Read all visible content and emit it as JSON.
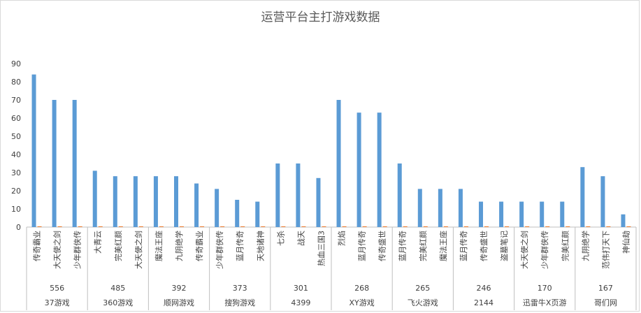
{
  "chart_data": {
    "type": "bar",
    "title": "运营平台主打游戏数据",
    "xlabel": "",
    "ylabel": "",
    "ylim": [
      0,
      90
    ],
    "yticks": [
      0,
      10,
      20,
      30,
      40,
      50,
      60,
      70,
      80,
      90
    ],
    "grid": false,
    "colors": {
      "series1": "#5b9bd5",
      "series2": "#ed7d31"
    },
    "groups": [
      {
        "platform": "37游戏",
        "total": "556",
        "games": [
          {
            "name": "传奇霸业",
            "value": 84,
            "value2": 0.4
          },
          {
            "name": "大天使之剑",
            "value": 70,
            "value2": 0.4
          },
          {
            "name": "少年群侠传",
            "value": 70,
            "value2": 0.4
          }
        ]
      },
      {
        "platform": "360游戏",
        "total": "485",
        "games": [
          {
            "name": "大青云",
            "value": 31,
            "value2": 0.4
          },
          {
            "name": "完美红颜",
            "value": 28,
            "value2": 0.4
          },
          {
            "name": "大天使之剑",
            "value": 28,
            "value2": 0.4
          }
        ]
      },
      {
        "platform": "顺网游戏",
        "total": "392",
        "games": [
          {
            "name": "魔法王座",
            "value": 28,
            "value2": 0.4
          },
          {
            "name": "九阴绝学",
            "value": 28,
            "value2": 0.4
          },
          {
            "name": "传奇霸业",
            "value": 24,
            "value2": 0.4
          }
        ]
      },
      {
        "platform": "搜狗游戏",
        "total": "373",
        "games": [
          {
            "name": "少年群侠传",
            "value": 21,
            "value2": 0.4
          },
          {
            "name": "蓝月传奇",
            "value": 15,
            "value2": 0.4
          },
          {
            "name": "天地诸神",
            "value": 14,
            "value2": 0.4
          }
        ]
      },
      {
        "platform": "4399",
        "total": "301",
        "games": [
          {
            "name": "七杀",
            "value": 35,
            "value2": 0.4
          },
          {
            "name": "战天",
            "value": 35,
            "value2": 0.4
          },
          {
            "name": "热血三国3",
            "value": 27,
            "value2": 0.4
          }
        ]
      },
      {
        "platform": "XY游戏",
        "total": "268",
        "games": [
          {
            "name": "烈焰",
            "value": 70,
            "value2": 0.4
          },
          {
            "name": "蓝月传奇",
            "value": 63,
            "value2": 0.4
          },
          {
            "name": "传奇盛世",
            "value": 63,
            "value2": 0.4
          }
        ]
      },
      {
        "platform": "飞火游戏",
        "total": "265",
        "games": [
          {
            "name": "蓝月传奇",
            "value": 35,
            "value2": 0.4
          },
          {
            "name": "完美红颜",
            "value": 21,
            "value2": 0.4
          },
          {
            "name": "魔法王座",
            "value": 21,
            "value2": 0.4
          }
        ]
      },
      {
        "platform": "2144",
        "total": "246",
        "games": [
          {
            "name": "蓝月传奇",
            "value": 21,
            "value2": 0.4
          },
          {
            "name": "传奇盛世",
            "value": 14,
            "value2": 0.4
          },
          {
            "name": "盗墓笔记",
            "value": 14,
            "value2": 0.4
          }
        ]
      },
      {
        "platform": "迅雷牛X页游",
        "total": "170",
        "games": [
          {
            "name": "大天使之剑",
            "value": 14,
            "value2": 0.4
          },
          {
            "name": "少年群侠传",
            "value": 14,
            "value2": 0.4
          },
          {
            "name": "完美红颜",
            "value": 14,
            "value2": 0.4
          }
        ]
      },
      {
        "platform": "哥们网",
        "total": "167",
        "games": [
          {
            "name": "九阴绝学",
            "value": 33,
            "value2": 0.4
          },
          {
            "name": "范伟打天下",
            "value": 28,
            "value2": 0.4
          },
          {
            "name": "神仙劫",
            "value": 7,
            "value2": 0.4
          }
        ]
      }
    ]
  }
}
